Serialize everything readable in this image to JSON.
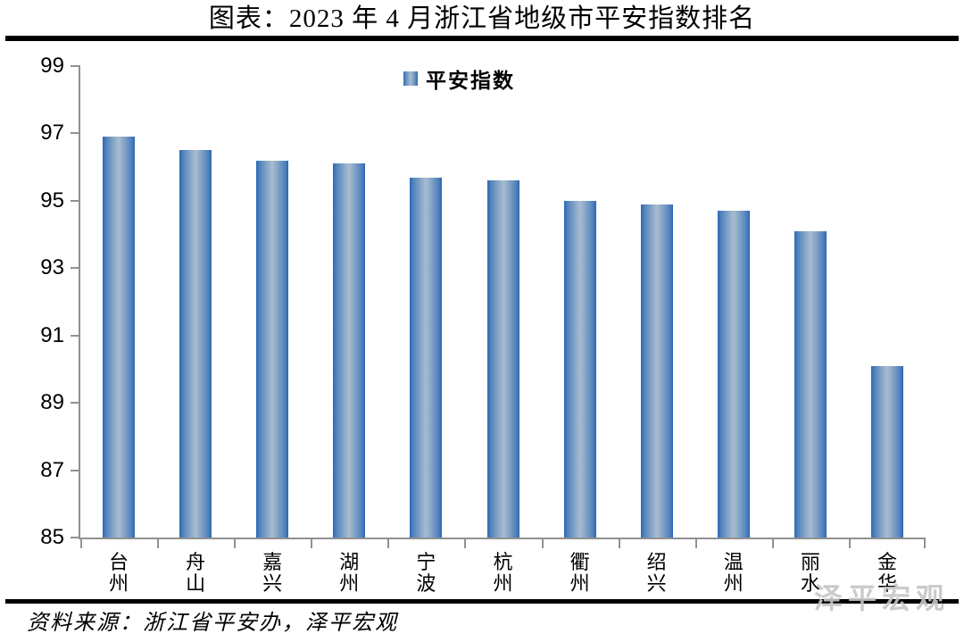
{
  "title": "图表：2023 年 4 月浙江省地级市平安指数排名",
  "legend": {
    "label": "平安指数"
  },
  "footer": {
    "source": "资料来源：浙江省平安办，泽平宏观"
  },
  "watermark": {
    "text": "泽平宏观"
  },
  "colors": {
    "bar_edge": "#2C67B3",
    "bar_inner": "#4F81BD",
    "bar_mid": "#A7BCD0",
    "axis": "#919191",
    "rule": "#000000"
  },
  "chart_data": {
    "type": "bar",
    "title": "图表：2023 年 4 月浙江省地级市平安指数排名",
    "series_name": "平安指数",
    "categories": [
      "台州",
      "舟山",
      "嘉兴",
      "湖州",
      "宁波",
      "杭州",
      "衢州",
      "绍兴",
      "温州",
      "丽水",
      "金华"
    ],
    "values": [
      96.9,
      96.5,
      96.2,
      96.1,
      95.7,
      95.6,
      95.0,
      94.9,
      94.7,
      94.1,
      90.1
    ],
    "ylim": [
      85,
      99
    ],
    "yticks": [
      85,
      87,
      89,
      91,
      93,
      95,
      97,
      99
    ],
    "xlabel": "",
    "ylabel": "",
    "grid": false,
    "legend_position": "top-center",
    "x_label_orientation": "vertical-stacked",
    "bar_style": "vertical cylinder-gradient blue"
  }
}
